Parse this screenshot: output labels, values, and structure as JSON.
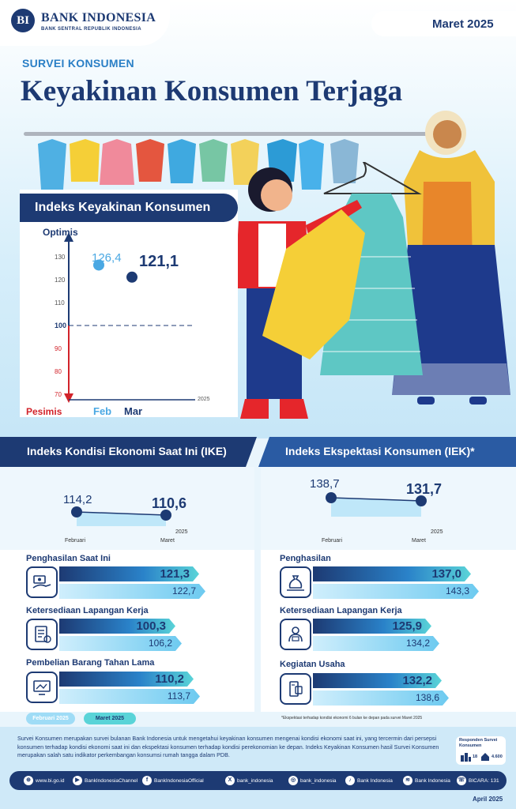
{
  "brand": {
    "name": "BANK INDONESIA",
    "tagline": "BANK SENTRAL REPUBLIK INDONESIA",
    "logo_letters": "BI"
  },
  "period": "Maret 2025",
  "section_label": "SURVEI KONSUMEN",
  "headline": "Keyakinan Konsumen Terjaga",
  "ikk": {
    "title": "Indeks Keyakinan Konsumen",
    "top_label": "Optimis",
    "bottom_label": "Pesimis",
    "y_ticks": [
      "130",
      "120",
      "110",
      "100",
      "90",
      "80",
      "70"
    ],
    "year": "2025",
    "categories": [
      "Feb",
      "Mar"
    ],
    "values_display": [
      "126,4",
      "121,1"
    ]
  },
  "ike": {
    "title": "Indeks Kondisi Ekonomi Saat Ini (IKE)",
    "start_value": "114,2",
    "end_value": "110,6",
    "start_label": "Februari",
    "end_label": "Maret",
    "year": "2025",
    "items": [
      {
        "label": "Penghasilan Saat Ini",
        "mar": "121,3",
        "feb": "122,7",
        "icon": "hand-money-icon"
      },
      {
        "label": "Ketersediaan Lapangan Kerja",
        "mar": "100,3",
        "feb": "106,2",
        "icon": "job-document-icon"
      },
      {
        "label": "Pembelian Barang Tahan Lama",
        "mar": "110,2",
        "feb": "113,7",
        "icon": "monitor-icon"
      }
    ]
  },
  "iek": {
    "title": "Indeks Ekspektasi Konsumen (IEK)*",
    "start_value": "138,7",
    "end_value": "131,7",
    "start_label": "Februari",
    "end_label": "Maret",
    "year": "2025",
    "items": [
      {
        "label": "Penghasilan",
        "mar": "137,0",
        "feb": "143,3",
        "icon": "money-bag-icon"
      },
      {
        "label": "Ketersediaan Lapangan Kerja",
        "mar": "125,9",
        "feb": "134,2",
        "icon": "worker-icon"
      },
      {
        "label": "Kegiatan Usaha",
        "mar": "132,2",
        "feb": "138,6",
        "icon": "business-icon"
      }
    ],
    "footnote": "*Ekspektasi terhadap kondisi ekonomi 6 bulan ke depan pada survei Maret 2025"
  },
  "legend": {
    "feb": "Februari 2025",
    "mar": "Maret 2025"
  },
  "colors": {
    "navy": "#1d3a73",
    "feb_light": "#7fd0f3",
    "teal": "#5ad4d8",
    "red": "#d2232a"
  },
  "description": "Survei Konsumen merupakan survei bulanan Bank Indonesia untuk mengetahui keyakinan konsumen mengenai kondisi ekonomi saat ini, yang tercermin dari persepsi konsumen terhadap kondisi ekonomi saat ini dan ekspektasi konsumen terhadap kondisi perekonomian ke depan. Indeks Keyakinan Konsumen hasil Survei Konsumen merupakan salah satu indikator perkembangan konsumsi rumah tangga dalam PDB.",
  "respondents": {
    "title": "Responden Survei Konsumen",
    "cities": "18",
    "count": "4.600"
  },
  "social": [
    {
      "icon": "globe-icon",
      "glyph": "⊕",
      "label": "www.bi.go.id"
    },
    {
      "icon": "youtube-icon",
      "glyph": "▶",
      "label": "BankIndonesiaChannel"
    },
    {
      "icon": "facebook-icon",
      "glyph": "f",
      "label": "BankIndonesiaOfficial"
    },
    {
      "icon": "x-icon",
      "glyph": "X",
      "label": "bank_indonesia"
    },
    {
      "icon": "instagram-icon",
      "glyph": "◎",
      "label": "bank_indonesia"
    },
    {
      "icon": "tiktok-icon",
      "glyph": "♪",
      "label": "Bank Indonesia"
    },
    {
      "icon": "spotify-icon",
      "glyph": "≋",
      "label": "Bank Indonesia"
    },
    {
      "icon": "phone-icon",
      "glyph": "☏",
      "label": "BICARA: 131"
    }
  ],
  "footer_date": "April 2025"
}
